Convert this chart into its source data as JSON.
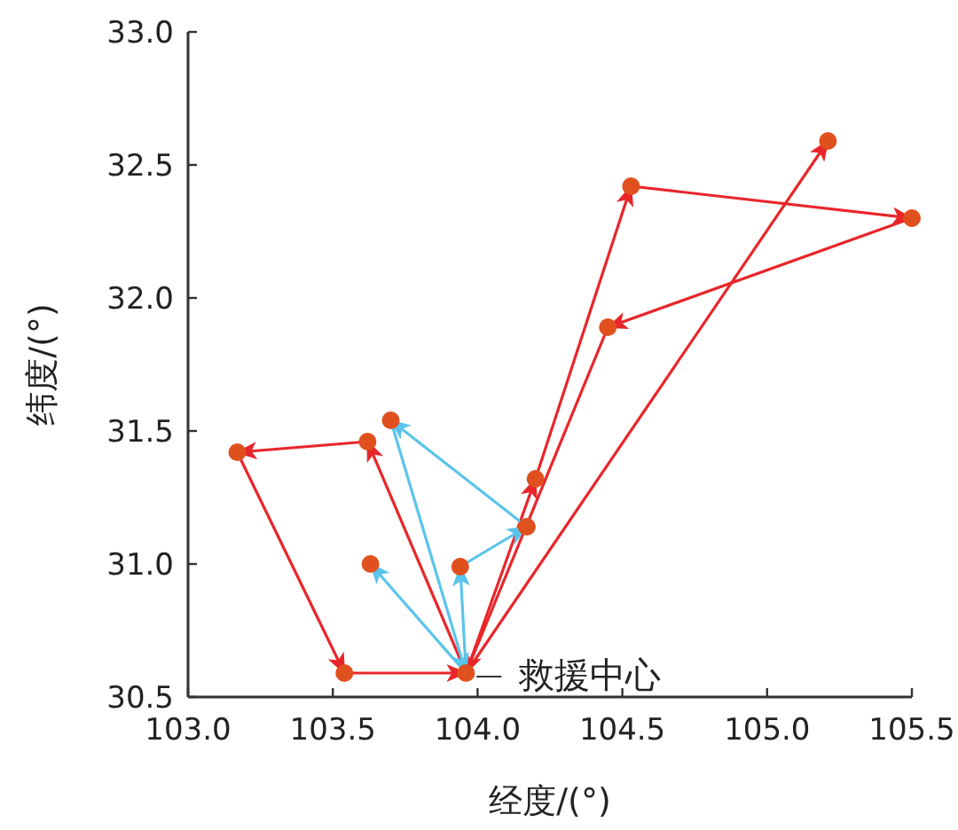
{
  "chart_data": {
    "type": "line",
    "xlabel": "经度/(°)",
    "ylabel": "纬度/(°)",
    "xlim": [
      103,
      105.5
    ],
    "ylim": [
      30.5,
      33
    ],
    "xticks": [
      {
        "value": 103,
        "label": "103.0"
      },
      103.5,
      {
        "value": 104,
        "label": "104.0"
      },
      104.5,
      {
        "value": 105,
        "label": "105.0"
      },
      105.5
    ],
    "yticks": [
      30.5,
      {
        "value": 31,
        "label": "31.0"
      },
      31.5,
      {
        "value": 32,
        "label": "32.0"
      },
      32.5,
      {
        "value": 33,
        "label": "33.0"
      }
    ],
    "grid": false,
    "line_style": "solid",
    "annotations": [
      {
        "text": "救援中心",
        "x": 103.96,
        "y": 30.59
      }
    ],
    "series": [
      {
        "color": "#e8262a",
        "x": [
          103.96,
          103.62
        ],
        "values": [
          30.59,
          31.46
        ]
      },
      {
        "color": "#e8262a",
        "x": [
          103.62,
          103.17
        ],
        "values": [
          31.46,
          31.42
        ]
      },
      {
        "color": "#e8262a",
        "x": [
          103.17,
          103.54
        ],
        "values": [
          31.42,
          30.59
        ]
      },
      {
        "color": "#e8262a",
        "x": [
          103.54,
          103.96
        ],
        "values": [
          30.59,
          30.59
        ]
      },
      {
        "color": "#e8262a",
        "x": [
          103.96,
          104.2
        ],
        "values": [
          30.59,
          31.32
        ]
      },
      {
        "color": "#e8262a",
        "x": [
          104.2,
          104.53
        ],
        "values": [
          31.32,
          32.42
        ]
      },
      {
        "color": "#e8262a",
        "x": [
          104.53,
          105.5
        ],
        "values": [
          32.42,
          32.3
        ]
      },
      {
        "color": "#e8262a",
        "x": [
          105.5,
          104.45
        ],
        "values": [
          32.3,
          31.89
        ]
      },
      {
        "color": "#e8262a",
        "x": [
          104.45,
          103.96
        ],
        "values": [
          31.89,
          30.59
        ]
      },
      {
        "color": "#e8262a",
        "x": [
          103.96,
          105.21
        ],
        "values": [
          30.59,
          32.59
        ]
      },
      {
        "color": "#5bc4ea",
        "x": [
          103.96,
          103.63
        ],
        "values": [
          30.59,
          31.0
        ]
      },
      {
        "color": "#5bc4ea",
        "x": [
          103.96,
          103.94
        ],
        "values": [
          30.59,
          30.99
        ]
      },
      {
        "color": "#5bc4ea",
        "x": [
          103.94,
          104.17
        ],
        "values": [
          30.99,
          31.14
        ]
      },
      {
        "color": "#5bc4ea",
        "x": [
          104.17,
          103.7
        ],
        "values": [
          31.14,
          31.54
        ]
      },
      {
        "color": "#5bc4ea",
        "x": [
          103.7,
          103.96
        ],
        "values": [
          31.54,
          30.59
        ]
      },
      {
        "type": "scatter",
        "marker": "circle",
        "color": "#e0501e",
        "x": [
          103.96,
          103.54,
          103.17,
          103.62,
          103.7,
          103.63,
          103.94,
          104.17,
          104.2,
          104.45,
          104.53,
          105.5,
          105.21
        ],
        "values": [
          30.59,
          30.59,
          31.42,
          31.46,
          31.54,
          31.0,
          30.99,
          31.14,
          31.32,
          31.89,
          32.42,
          32.3,
          32.59
        ]
      }
    ]
  }
}
